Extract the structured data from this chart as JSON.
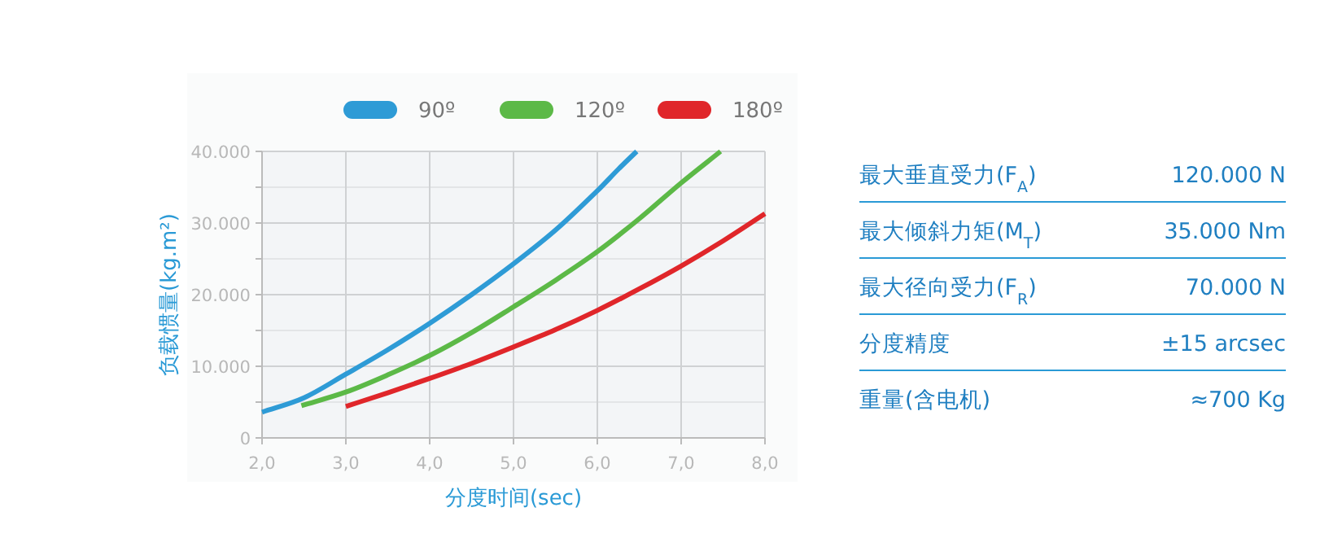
{
  "chart_data": [
    {
      "type": "line",
      "xlabel": "分度时间(sec)",
      "ylabel": "负载惯量(kg.m²)",
      "legend": "top",
      "grid": true,
      "marker": "none",
      "line_style": "solid",
      "xlim": [
        2,
        8
      ],
      "xticks": [
        {
          "value": 2,
          "label": "2,0"
        },
        {
          "value": 3,
          "label": "3,0"
        },
        {
          "value": 4,
          "label": "4,0"
        },
        {
          "value": 5,
          "label": "5,0"
        },
        {
          "value": 6,
          "label": "6,0"
        },
        {
          "value": 7,
          "label": "7,0"
        },
        {
          "value": 8,
          "label": "8,0"
        }
      ],
      "ylim": [
        0,
        40000
      ],
      "yticks": [
        0,
        {
          "value": 5000,
          "label": null
        },
        {
          "value": 10000,
          "label": "10.000"
        },
        {
          "value": 15000,
          "label": null
        },
        {
          "value": 20000,
          "label": "20.000"
        },
        {
          "value": 25000,
          "label": null
        },
        {
          "value": 30000,
          "label": "30.000"
        },
        {
          "value": 35000,
          "label": null
        },
        {
          "value": 40000,
          "label": "40.000"
        }
      ],
      "series": [
        {
          "name": "90º",
          "color": "#2e9bd6",
          "x": [
            2,
            2.5,
            3,
            3.5,
            4,
            4.5,
            5,
            5.5,
            6,
            6.25,
            6.47
          ],
          "values": [
            3600,
            5600,
            8900,
            12300,
            16000,
            20000,
            24300,
            29000,
            34500,
            37500,
            40000
          ]
        },
        {
          "name": "120º",
          "color": "#5cb947",
          "x": [
            2.47,
            3,
            3.5,
            4,
            4.5,
            5,
            5.5,
            6,
            6.5,
            7,
            7.47
          ],
          "values": [
            4500,
            6400,
            8800,
            11500,
            14700,
            18300,
            22000,
            26000,
            30600,
            35600,
            40000
          ]
        },
        {
          "name": "180º",
          "color": "#e0262a",
          "x": [
            3,
            3.5,
            4,
            4.5,
            5,
            5.5,
            6,
            6.5,
            7,
            7.5,
            8
          ],
          "values": [
            4400,
            6300,
            8300,
            10400,
            12700,
            15100,
            17800,
            20800,
            24000,
            27500,
            31300
          ]
        }
      ]
    },
    {
      "type": "other",
      "annotations": [
        "最大垂直受力(F$_{A}$)",
        "120.000 N",
        "最大倾斜力矩(M$_{T}$)",
        "35.000 Nm",
        "最大径向受力(F$_{R}$)",
        "70.000 N",
        "分度精度",
        "±15 arcsec",
        "重量(含电机)",
        "≈700 Kg"
      ]
    }
  ]
}
